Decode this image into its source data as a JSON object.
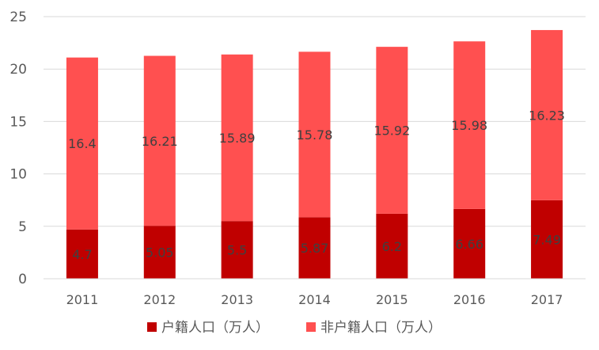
{
  "chart_data": {
    "type": "bar",
    "stacked": true,
    "categories": [
      "2011",
      "2012",
      "2013",
      "2014",
      "2015",
      "2016",
      "2017"
    ],
    "series": [
      {
        "name": "户籍人口（万人）",
        "values": [
          4.7,
          5.05,
          5.5,
          5.87,
          6.2,
          6.66,
          7.49
        ],
        "labels": [
          "4.7",
          "5.05",
          "5.5",
          "5.87",
          "6.2",
          "6.66",
          "7.49"
        ],
        "color": "#C00000"
      },
      {
        "name": "非户籍人口（万人）",
        "values": [
          16.4,
          16.21,
          15.89,
          15.78,
          15.92,
          15.98,
          16.23
        ],
        "labels": [
          "16.4",
          "16.21",
          "15.89",
          "15.78",
          "15.92",
          "15.98",
          "16.23"
        ],
        "color": "#FF5050"
      }
    ],
    "y_ticks": [
      "0",
      "5",
      "10",
      "15",
      "20",
      "25"
    ],
    "ylim": [
      0,
      25
    ],
    "grid": true,
    "legend_position": "bottom",
    "data_label_color": "#404040",
    "axis_label_color": "#595959",
    "gridline_color": "#D9D9D9"
  }
}
